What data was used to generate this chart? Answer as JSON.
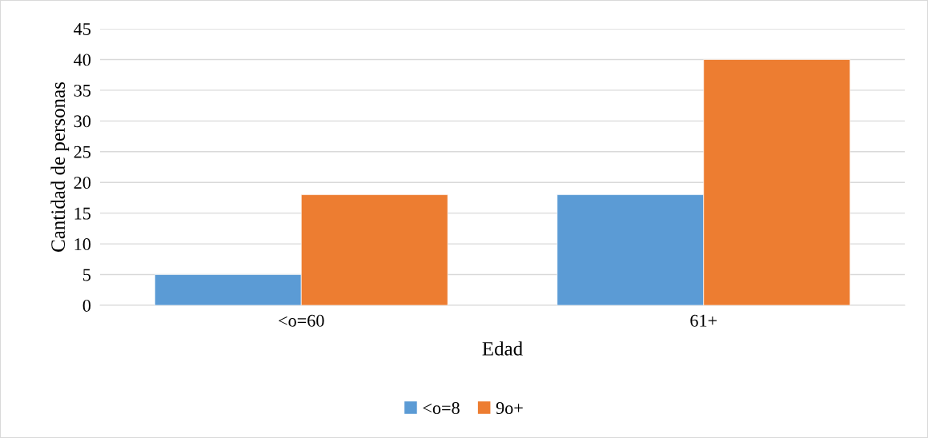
{
  "chart_data": {
    "type": "bar",
    "xlabel": "Edad",
    "ylabel": "Cantidad de personas",
    "categories": [
      "<o=60",
      "61+"
    ],
    "series": [
      {
        "name": "<o=8",
        "color": "#5b9bd5",
        "values": [
          5,
          18
        ]
      },
      {
        "name": "9o+",
        "color": "#ed7d31",
        "values": [
          18,
          40
        ]
      }
    ],
    "ylim": [
      0,
      45
    ],
    "yticks": [
      0,
      5,
      10,
      15,
      20,
      25,
      30,
      35,
      40,
      45
    ],
    "grid": "y",
    "legend": "bottom"
  }
}
